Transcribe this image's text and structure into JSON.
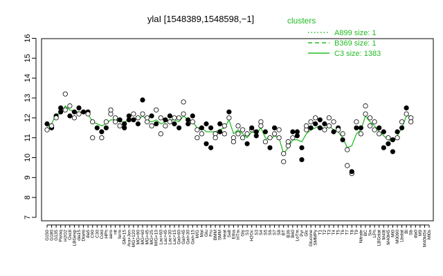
{
  "chart_data": {
    "type": "scatter",
    "title": "ylaI [1548389,1548598,−1]",
    "xlabel": "",
    "ylabel": "",
    "ylim": [
      7,
      16
    ],
    "yticks": [
      7,
      8,
      9,
      10,
      11,
      12,
      13,
      14,
      15,
      16
    ],
    "grid": false,
    "legend": {
      "title": "clusters",
      "placement": "top-right",
      "entries": [
        {
          "label": "A899 size: 1",
          "style": "dotted"
        },
        {
          "label": "B369 size: 1",
          "style": "dashed"
        },
        {
          "label": "C3 size: 1383",
          "style": "solid"
        }
      ]
    },
    "colors": {
      "points": "#000000",
      "line": "#22bb22",
      "axis": "#000000"
    },
    "x_tick_labels": [
      "G150",
      "G180",
      "G135",
      "Paraq",
      "H2O2",
      "Oxctl",
      "LBGexp",
      "dia15",
      "Diami",
      "dia5",
      "C90",
      "C30",
      "Cold",
      "HPh",
      "aero",
      "nit",
      "ferm",
      "GM+15",
      "Ara+Jon",
      "MG+120",
      "MG+90",
      "MG+60",
      "MG+45",
      "MG+25",
      "M/G+10",
      "Lac+60",
      "Lac+45",
      "Lac+30",
      "Lac+15",
      "Gal+60",
      "Gal+45",
      "Gal+30",
      "Gal+15",
      "M/G",
      "Mal",
      "Glu",
      "Fru",
      "BMM",
      "SMM",
      "Heat",
      "Salt",
      "Etha",
      "HTm",
      "Gly",
      "S1",
      "H2Oc",
      "S3",
      "S4",
      "S5",
      "S6",
      "S7",
      "S8",
      "BT",
      "B36",
      "B60",
      "LoTm",
      "Pyr",
      "Glc",
      "Glucone",
      "SMMPy",
      "T1",
      "T2",
      "T3",
      "T4",
      "T5",
      "T6",
      "T7",
      "T8",
      "T9",
      "Nitrate",
      "BC",
      "Sw",
      "LPh",
      "LBGstat",
      "M40t",
      "M40t45",
      "Mt0",
      "M0090",
      "Lbstat",
      "Bl",
      "Sb",
      "dia0",
      "M9",
      "M40t45s",
      "Mt0s"
    ],
    "points": [
      {
        "x": 1,
        "y": 11.4
      },
      {
        "x": 1,
        "y": 11.7
      },
      {
        "x": 2,
        "y": 11.5
      },
      {
        "x": 2,
        "y": 11.6
      },
      {
        "x": 3,
        "y": 12.1
      },
      {
        "x": 3,
        "y": 12.0
      },
      {
        "x": 4,
        "y": 12.3
      },
      {
        "x": 4,
        "y": 12.5
      },
      {
        "x": 5,
        "y": 13.2
      },
      {
        "x": 5,
        "y": 12.4
      },
      {
        "x": 6,
        "y": 12.1
      },
      {
        "x": 6,
        "y": 12.6
      },
      {
        "x": 7,
        "y": 12.3
      },
      {
        "x": 7,
        "y": 12.0
      },
      {
        "x": 8,
        "y": 12.5
      },
      {
        "x": 8,
        "y": 12.2
      },
      {
        "x": 9,
        "y": 12.3
      },
      {
        "x": 10,
        "y": 12.3
      },
      {
        "x": 10,
        "y": 12.2
      },
      {
        "x": 11,
        "y": 11.8
      },
      {
        "x": 11,
        "y": 11.0
      },
      {
        "x": 12,
        "y": 11.5
      },
      {
        "x": 13,
        "y": 11.0
      },
      {
        "x": 13,
        "y": 11.3
      },
      {
        "x": 14,
        "y": 11.8
      },
      {
        "x": 14,
        "y": 11.5
      },
      {
        "x": 15,
        "y": 12.2
      },
      {
        "x": 15,
        "y": 12.4
      },
      {
        "x": 16,
        "y": 11.8
      },
      {
        "x": 16,
        "y": 12.0
      },
      {
        "x": 17,
        "y": 11.6
      },
      {
        "x": 17,
        "y": 11.9
      },
      {
        "x": 18,
        "y": 11.5
      },
      {
        "x": 18,
        "y": 11.7
      },
      {
        "x": 19,
        "y": 11.9
      },
      {
        "x": 19,
        "y": 12.1
      },
      {
        "x": 20,
        "y": 11.9
      },
      {
        "x": 20,
        "y": 12.2
      },
      {
        "x": 21,
        "y": 12.0
      },
      {
        "x": 21,
        "y": 11.7
      },
      {
        "x": 22,
        "y": 12.9
      },
      {
        "x": 22,
        "y": 12.2
      },
      {
        "x": 23,
        "y": 11.8
      },
      {
        "x": 23,
        "y": 12.0
      },
      {
        "x": 24,
        "y": 11.6
      },
      {
        "x": 24,
        "y": 12.1
      },
      {
        "x": 25,
        "y": 12.4
      },
      {
        "x": 25,
        "y": 11.7
      },
      {
        "x": 26,
        "y": 11.2
      },
      {
        "x": 26,
        "y": 12.0
      },
      {
        "x": 27,
        "y": 11.9
      },
      {
        "x": 27,
        "y": 11.6
      },
      {
        "x": 28,
        "y": 12.1
      },
      {
        "x": 28,
        "y": 11.8
      },
      {
        "x": 29,
        "y": 11.7
      },
      {
        "x": 29,
        "y": 12.0
      },
      {
        "x": 30,
        "y": 12.0
      },
      {
        "x": 30,
        "y": 11.5
      },
      {
        "x": 31,
        "y": 12.8
      },
      {
        "x": 31,
        "y": 12.2
      },
      {
        "x": 32,
        "y": 11.9
      },
      {
        "x": 32,
        "y": 11.7
      },
      {
        "x": 33,
        "y": 11.8
      },
      {
        "x": 33,
        "y": 12.1
      },
      {
        "x": 34,
        "y": 11.0
      },
      {
        "x": 34,
        "y": 11.4
      },
      {
        "x": 35,
        "y": 11.5
      },
      {
        "x": 35,
        "y": 11.2
      },
      {
        "x": 36,
        "y": 10.7
      },
      {
        "x": 36,
        "y": 11.7
      },
      {
        "x": 37,
        "y": 11.5
      },
      {
        "x": 37,
        "y": 10.5
      },
      {
        "x": 38,
        "y": 11.2
      },
      {
        "x": 38,
        "y": 11.0
      },
      {
        "x": 39,
        "y": 11.3
      },
      {
        "x": 39,
        "y": 11.7
      },
      {
        "x": 40,
        "y": 11.6
      },
      {
        "x": 40,
        "y": 11.2
      },
      {
        "x": 41,
        "y": 12.3
      },
      {
        "x": 41,
        "y": 12.0
      },
      {
        "x": 42,
        "y": 11.0
      },
      {
        "x": 42,
        "y": 10.8
      },
      {
        "x": 43,
        "y": 11.6
      },
      {
        "x": 43,
        "y": 11.2
      },
      {
        "x": 44,
        "y": 11.0
      },
      {
        "x": 44,
        "y": 11.4
      },
      {
        "x": 45,
        "y": 10.7
      },
      {
        "x": 45,
        "y": 11.2
      },
      {
        "x": 46,
        "y": 11.4
      },
      {
        "x": 46,
        "y": 11.5
      },
      {
        "x": 47,
        "y": 11.1
      },
      {
        "x": 47,
        "y": 11.3
      },
      {
        "x": 48,
        "y": 11.8
      },
      {
        "x": 48,
        "y": 11.6
      },
      {
        "x": 49,
        "y": 10.8
      },
      {
        "x": 49,
        "y": 11.3
      },
      {
        "x": 50,
        "y": 10.5
      },
      {
        "x": 50,
        "y": 11.0
      },
      {
        "x": 51,
        "y": 11.5
      },
      {
        "x": 51,
        "y": 11.2
      },
      {
        "x": 52,
        "y": 11.0
      },
      {
        "x": 52,
        "y": 11.4
      },
      {
        "x": 53,
        "y": 9.8
      },
      {
        "x": 53,
        "y": 10.2
      },
      {
        "x": 54,
        "y": 10.6
      },
      {
        "x": 54,
        "y": 10.8
      },
      {
        "x": 55,
        "y": 11.3
      },
      {
        "x": 55,
        "y": 11.0
      },
      {
        "x": 56,
        "y": 11.3
      },
      {
        "x": 56,
        "y": 11.1
      },
      {
        "x": 57,
        "y": 10.5
      },
      {
        "x": 57,
        "y": 9.9
      },
      {
        "x": 58,
        "y": 11.4
      },
      {
        "x": 58,
        "y": 11.6
      },
      {
        "x": 59,
        "y": 11.8
      },
      {
        "x": 59,
        "y": 11.5
      },
      {
        "x": 60,
        "y": 12.0
      },
      {
        "x": 60,
        "y": 11.7
      },
      {
        "x": 61,
        "y": 11.5
      },
      {
        "x": 61,
        "y": 11.9
      },
      {
        "x": 62,
        "y": 11.7
      },
      {
        "x": 62,
        "y": 11.4
      },
      {
        "x": 63,
        "y": 12.0
      },
      {
        "x": 63,
        "y": 11.6
      },
      {
        "x": 64,
        "y": 11.8
      },
      {
        "x": 64,
        "y": 11.3
      },
      {
        "x": 65,
        "y": 11.5
      },
      {
        "x": 65,
        "y": 11.4
      },
      {
        "x": 66,
        "y": 10.9
      },
      {
        "x": 66,
        "y": 11.2
      },
      {
        "x": 67,
        "y": 10.4
      },
      {
        "x": 67,
        "y": 9.6
      },
      {
        "x": 68,
        "y": 9.2
      },
      {
        "x": 68,
        "y": 9.3
      },
      {
        "x": 69,
        "y": 11.5
      },
      {
        "x": 69,
        "y": 11.8
      },
      {
        "x": 70,
        "y": 11.2
      },
      {
        "x": 70,
        "y": 11.5
      },
      {
        "x": 71,
        "y": 12.6
      },
      {
        "x": 71,
        "y": 12.2
      },
      {
        "x": 72,
        "y": 11.6
      },
      {
        "x": 72,
        "y": 12.0
      },
      {
        "x": 73,
        "y": 11.8
      },
      {
        "x": 73,
        "y": 11.4
      },
      {
        "x": 74,
        "y": 11.2
      },
      {
        "x": 74,
        "y": 11.5
      },
      {
        "x": 75,
        "y": 10.5
      },
      {
        "x": 75,
        "y": 11.3
      },
      {
        "x": 76,
        "y": 11.0
      },
      {
        "x": 76,
        "y": 10.7
      },
      {
        "x": 77,
        "y": 10.3
      },
      {
        "x": 77,
        "y": 10.9
      },
      {
        "x": 78,
        "y": 11.3
      },
      {
        "x": 78,
        "y": 11.0
      },
      {
        "x": 79,
        "y": 11.5
      },
      {
        "x": 79,
        "y": 11.8
      },
      {
        "x": 80,
        "y": 12.5
      },
      {
        "x": 80,
        "y": 12.2
      },
      {
        "x": 81,
        "y": 12.0
      },
      {
        "x": 81,
        "y": 11.8
      }
    ],
    "line": [
      [
        1,
        11.5
      ],
      [
        2,
        11.7
      ],
      [
        3,
        12.2
      ],
      [
        4,
        12.2
      ],
      [
        5,
        12.6
      ],
      [
        6,
        12.4
      ],
      [
        7,
        12.3
      ],
      [
        8,
        12.3
      ],
      [
        9,
        12.3
      ],
      [
        10,
        12.2
      ],
      [
        11,
        11.8
      ],
      [
        12,
        11.7
      ],
      [
        13,
        11.6
      ],
      [
        14,
        11.7
      ],
      [
        15,
        11.9
      ],
      [
        16,
        11.9
      ],
      [
        17,
        11.8
      ],
      [
        18,
        11.8
      ],
      [
        19,
        11.9
      ],
      [
        20,
        12.0
      ],
      [
        21,
        11.9
      ],
      [
        22,
        12.1
      ],
      [
        23,
        11.9
      ],
      [
        24,
        11.8
      ],
      [
        25,
        11.9
      ],
      [
        26,
        11.7
      ],
      [
        27,
        11.8
      ],
      [
        28,
        11.9
      ],
      [
        29,
        11.9
      ],
      [
        30,
        11.8
      ],
      [
        31,
        12.1
      ],
      [
        32,
        11.9
      ],
      [
        33,
        11.8
      ],
      [
        34,
        11.5
      ],
      [
        35,
        11.5
      ],
      [
        36,
        11.3
      ],
      [
        37,
        11.3
      ],
      [
        38,
        11.3
      ],
      [
        39,
        11.4
      ],
      [
        40,
        11.5
      ],
      [
        41,
        11.9
      ],
      [
        42,
        11.2
      ],
      [
        43,
        11.4
      ],
      [
        44,
        11.2
      ],
      [
        45,
        11.0
      ],
      [
        46,
        11.3
      ],
      [
        47,
        11.2
      ],
      [
        48,
        11.5
      ],
      [
        49,
        11.0
      ],
      [
        50,
        10.9
      ],
      [
        51,
        11.1
      ],
      [
        52,
        11.0
      ],
      [
        53,
        10.2
      ],
      [
        54,
        10.5
      ],
      [
        55,
        10.9
      ],
      [
        56,
        10.9
      ],
      [
        57,
        10.8
      ],
      [
        58,
        11.2
      ],
      [
        59,
        11.4
      ],
      [
        60,
        11.5
      ],
      [
        61,
        11.6
      ],
      [
        62,
        11.4
      ],
      [
        63,
        11.6
      ],
      [
        64,
        11.4
      ],
      [
        65,
        11.3
      ],
      [
        66,
        11.0
      ],
      [
        67,
        10.5
      ],
      [
        68,
        10.6
      ],
      [
        69,
        11.2
      ],
      [
        70,
        11.4
      ],
      [
        71,
        12.1
      ],
      [
        72,
        11.8
      ],
      [
        73,
        11.6
      ],
      [
        74,
        11.3
      ],
      [
        75,
        11.1
      ],
      [
        76,
        10.9
      ],
      [
        77,
        10.8
      ],
      [
        78,
        11.1
      ],
      [
        79,
        11.5
      ],
      [
        80,
        12.1
      ],
      [
        81,
        12.1
      ]
    ]
  }
}
